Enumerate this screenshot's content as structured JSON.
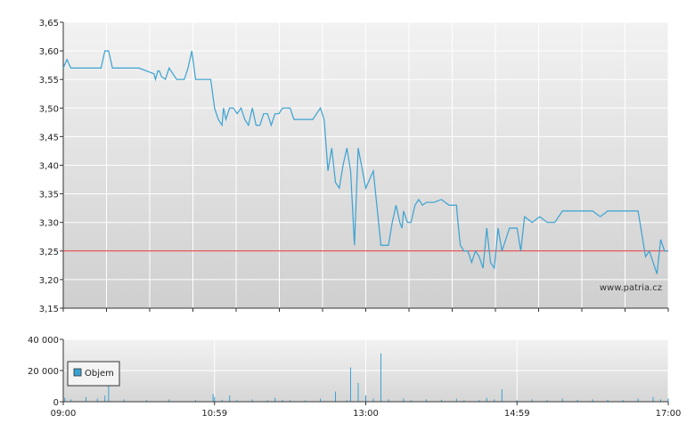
{
  "chart_data": [
    {
      "type": "line",
      "title": "",
      "xlabel": "",
      "ylabel": "",
      "ylim": [
        3.15,
        3.65
      ],
      "y_ticks": [
        "3,15",
        "3,20",
        "3,25",
        "3,30",
        "3,35",
        "3,40",
        "3,45",
        "3,50",
        "3,55",
        "3,60",
        "3,65"
      ],
      "x_tick_labels": [
        "09:00",
        "10:59",
        "13:00",
        "14:59",
        "17:00"
      ],
      "xlim_hours": [
        9,
        17
      ],
      "reference_line": 3.25,
      "watermark": "www.patria.cz",
      "grid": true,
      "series": [
        {
          "x": [
            9.0,
            9.05,
            9.1,
            9.15,
            9.2,
            9.3,
            9.5,
            9.55,
            9.6,
            9.65,
            9.7,
            9.8,
            9.9,
            10.0,
            10.2,
            10.22,
            10.25,
            10.27,
            10.3,
            10.35,
            10.4,
            10.5,
            10.58,
            10.6,
            10.65,
            10.7,
            10.75,
            10.8,
            10.85,
            10.9,
            10.95,
            11.0,
            11.05,
            11.1,
            11.12,
            11.15,
            11.2,
            11.25,
            11.3,
            11.35,
            11.4,
            11.45,
            11.5,
            11.55,
            11.6,
            11.65,
            11.7,
            11.75,
            11.8,
            11.85,
            11.9,
            11.95,
            12.0,
            12.05,
            12.1,
            12.15,
            12.2,
            12.25,
            12.3,
            12.35,
            12.4,
            12.45,
            12.5,
            12.55,
            12.6,
            12.65,
            12.7,
            12.75,
            12.8,
            12.85,
            12.9,
            13.0,
            13.1,
            13.2,
            13.3,
            13.35,
            13.4,
            13.45,
            13.48,
            13.5,
            13.55,
            13.6,
            13.65,
            13.7,
            13.75,
            13.8,
            13.9,
            14.0,
            14.1,
            14.2,
            14.22,
            14.25,
            14.3,
            14.35,
            14.4,
            14.45,
            14.5,
            14.55,
            14.6,
            14.65,
            14.7,
            14.75,
            14.8,
            14.9,
            15.0,
            15.05,
            15.1,
            15.2,
            15.3,
            15.4,
            15.5,
            15.6,
            15.7,
            15.8,
            15.9,
            16.0,
            16.1,
            16.2,
            16.3,
            16.4,
            16.5,
            16.6,
            16.65,
            16.7,
            16.75,
            16.8,
            16.85,
            16.9,
            16.95,
            17.0
          ],
          "y": [
            3.57,
            3.585,
            3.57,
            3.57,
            3.57,
            3.57,
            3.57,
            3.6,
            3.6,
            3.57,
            3.57,
            3.57,
            3.57,
            3.57,
            3.56,
            3.55,
            3.565,
            3.565,
            3.555,
            3.55,
            3.57,
            3.55,
            3.55,
            3.55,
            3.57,
            3.6,
            3.55,
            3.55,
            3.55,
            3.55,
            3.55,
            3.5,
            3.48,
            3.47,
            3.5,
            3.48,
            3.5,
            3.5,
            3.49,
            3.5,
            3.48,
            3.47,
            3.5,
            3.47,
            3.47,
            3.49,
            3.49,
            3.47,
            3.49,
            3.49,
            3.5,
            3.5,
            3.5,
            3.48,
            3.48,
            3.48,
            3.48,
            3.48,
            3.48,
            3.49,
            3.5,
            3.48,
            3.39,
            3.43,
            3.37,
            3.36,
            3.4,
            3.43,
            3.39,
            3.26,
            3.43,
            3.36,
            3.39,
            3.26,
            3.26,
            3.3,
            3.33,
            3.3,
            3.29,
            3.32,
            3.3,
            3.3,
            3.33,
            3.34,
            3.33,
            3.335,
            3.335,
            3.34,
            3.33,
            3.33,
            3.3,
            3.26,
            3.25,
            3.25,
            3.23,
            3.25,
            3.24,
            3.22,
            3.29,
            3.23,
            3.22,
            3.29,
            3.25,
            3.29,
            3.29,
            3.25,
            3.31,
            3.3,
            3.31,
            3.3,
            3.3,
            3.32,
            3.32,
            3.32,
            3.32,
            3.32,
            3.31,
            3.32,
            3.32,
            3.32,
            3.32,
            3.32,
            3.28,
            3.24,
            3.25,
            3.23,
            3.21,
            3.27,
            3.25,
            3.25
          ]
        }
      ]
    },
    {
      "type": "bar",
      "title": "",
      "ylim": [
        0,
        40000
      ],
      "y_ticks": [
        "0",
        "20 000",
        "40 000"
      ],
      "x_tick_labels": [
        "09:00",
        "10:59",
        "13:00",
        "14:59",
        "17:00"
      ],
      "legend": "Objem",
      "grid": true,
      "series": [
        {
          "name": "Objem",
          "x": [
            9.02,
            9.1,
            9.3,
            9.45,
            9.55,
            9.6,
            9.8,
            10.1,
            10.4,
            10.75,
            10.98,
            11.0,
            11.1,
            11.2,
            11.3,
            11.5,
            11.7,
            11.8,
            11.9,
            12.0,
            12.2,
            12.4,
            12.6,
            12.75,
            12.8,
            12.9,
            13.0,
            13.1,
            13.2,
            13.3,
            13.5,
            13.6,
            13.8,
            14.0,
            14.2,
            14.3,
            14.5,
            14.6,
            14.7,
            14.8,
            15.0,
            15.2,
            15.4,
            15.6,
            15.8,
            16.0,
            16.2,
            16.4,
            16.6,
            16.8,
            16.9,
            17.0
          ],
          "values": [
            2500,
            1500,
            3000,
            2000,
            4000,
            14000,
            1500,
            1000,
            1500,
            1000,
            5000,
            3000,
            1200,
            4000,
            1000,
            1500,
            1000,
            2500,
            1200,
            1000,
            800,
            2000,
            6500,
            1000,
            22000,
            12000,
            4000,
            2000,
            31000,
            1500,
            2000,
            1000,
            1500,
            1200,
            2000,
            1000,
            1000,
            2500,
            1500,
            8000,
            1000,
            1500,
            1000,
            2000,
            1200,
            1500,
            1200,
            1000,
            2000,
            3000,
            1500,
            2000
          ]
        }
      ]
    }
  ]
}
